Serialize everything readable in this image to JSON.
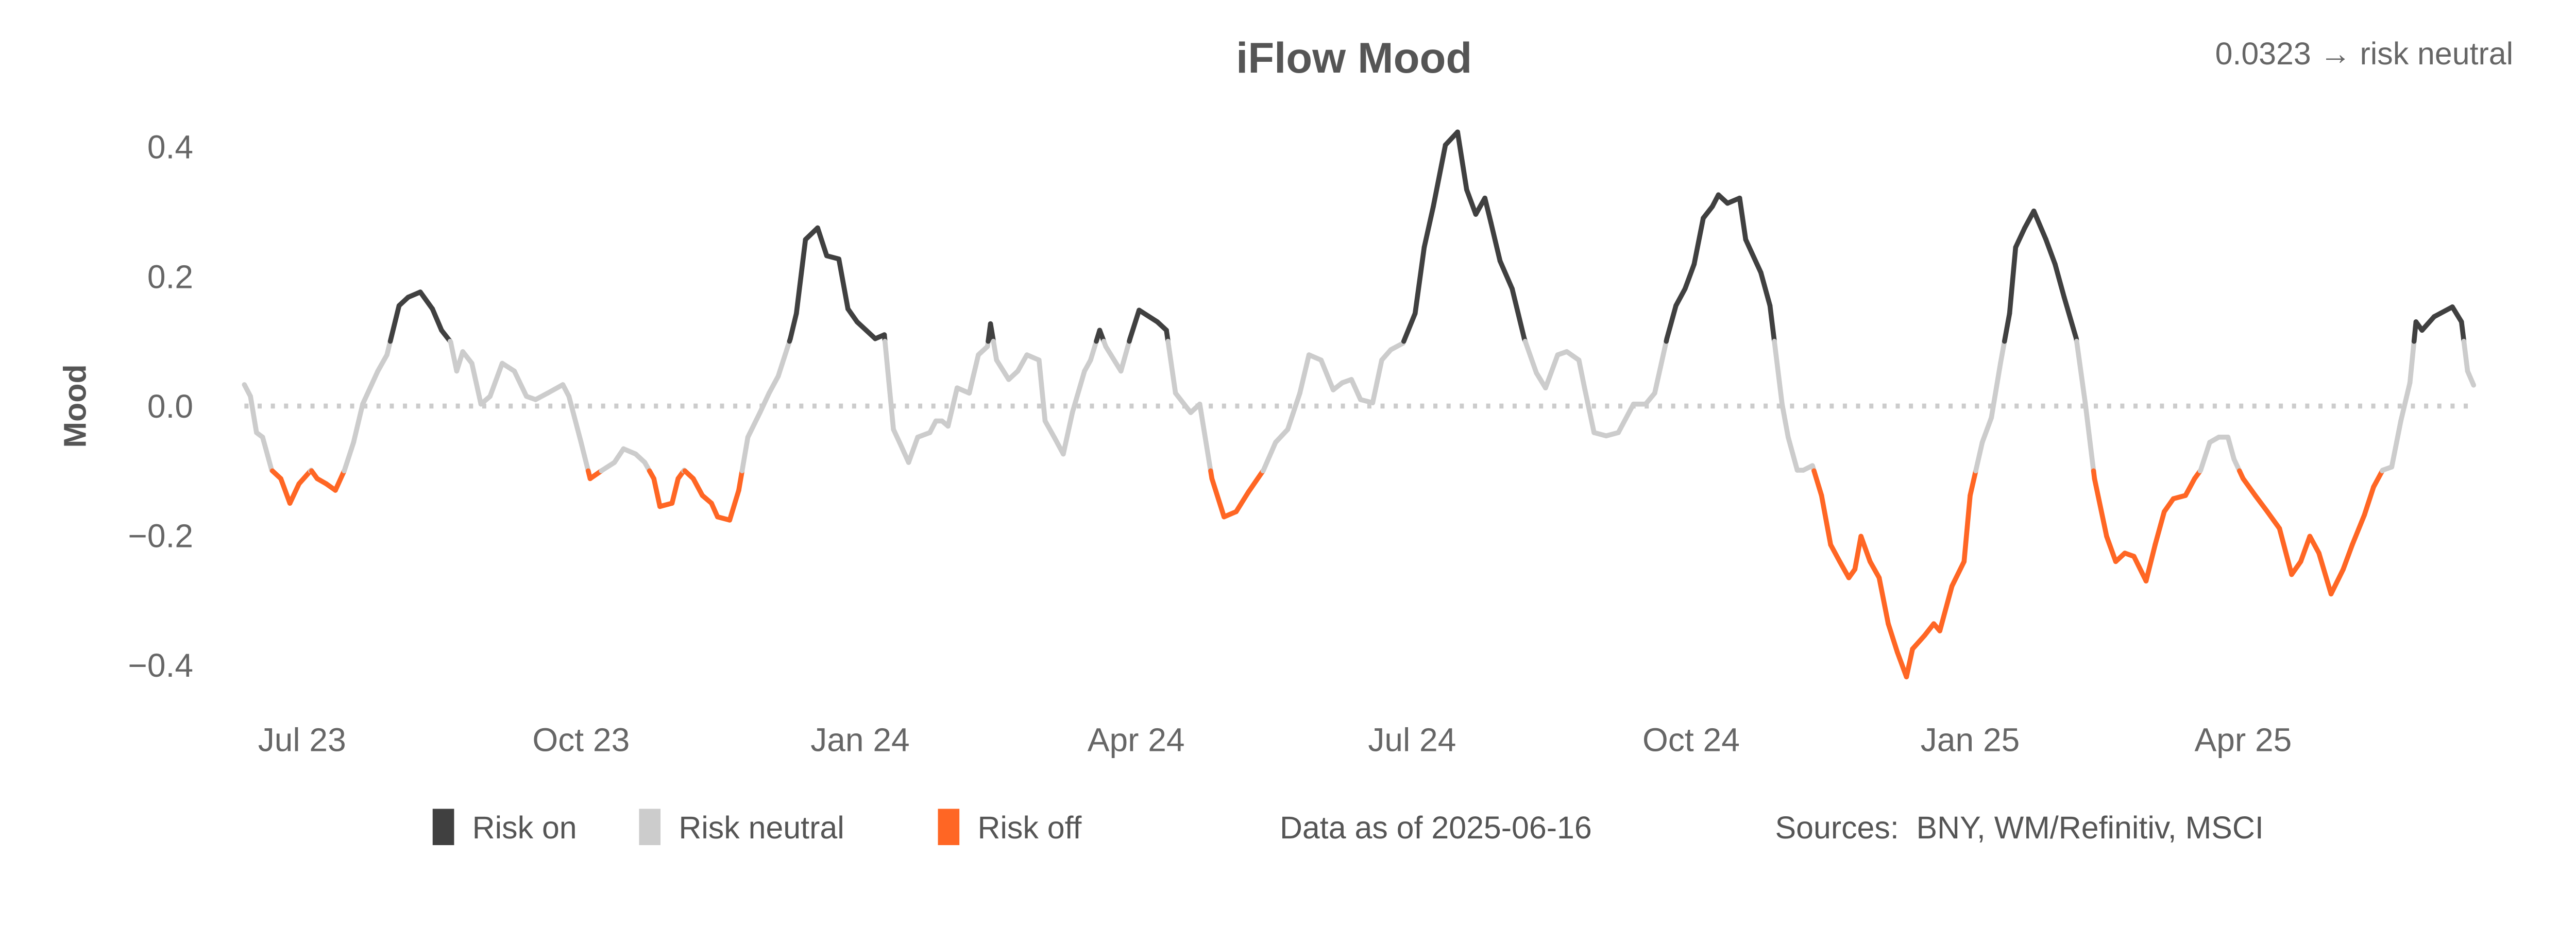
{
  "chart_data": {
    "type": "line",
    "title": "iFlow Mood",
    "status": "0.0323 → risk neutral",
    "ylabel": "Mood",
    "xlabel": "",
    "ylim": [
      -0.45,
      0.45
    ],
    "yticks": [
      0.4,
      0.2,
      0.0,
      -0.2,
      -0.4
    ],
    "ytick_labels": [
      "0.4",
      "0.2",
      "0.0",
      "−0.2",
      "−0.4"
    ],
    "xticks": [
      "2023-07-01",
      "2023-10-01",
      "2024-01-01",
      "2024-04-01",
      "2024-07-01",
      "2024-10-01",
      "2025-01-01",
      "2025-04-01"
    ],
    "xtick_labels": [
      "Jul 23",
      "Oct 23",
      "Jan 24",
      "Apr 24",
      "Jul 24",
      "Oct 24",
      "Jan 25",
      "Apr 25"
    ],
    "xlim": [
      "2023-06-12",
      "2025-06-16"
    ],
    "zero_line": "dotted",
    "grid": false,
    "legend": {
      "placement": "bottom",
      "items": [
        {
          "label": "Risk on",
          "color": "#404040"
        },
        {
          "label": "Risk neutral",
          "color": "#cccccc"
        },
        {
          "label": "Risk off",
          "color": "#ff6624"
        }
      ]
    },
    "footer": {
      "data_as_of": "Data as of 2025-06-16",
      "sources": "Sources:  BNY, WM/Refinitiv, MSCI"
    },
    "series": [
      {
        "points": [
          [
            "2023-06-12",
            0.033
          ],
          [
            "2023-06-14",
            0.015
          ],
          [
            "2023-06-16",
            -0.041
          ],
          [
            "2023-06-18",
            -0.048
          ],
          [
            "2023-06-21",
            -0.099
          ],
          [
            "2023-06-24",
            -0.112
          ],
          [
            "2023-06-27",
            -0.15
          ],
          [
            "2023-06-30",
            -0.12
          ],
          [
            "2023-07-04",
            -0.099
          ],
          [
            "2023-07-06",
            -0.112
          ],
          [
            "2023-07-09",
            -0.12
          ],
          [
            "2023-07-12",
            -0.13
          ],
          [
            "2023-07-15",
            -0.099
          ],
          [
            "2023-07-18",
            -0.056
          ],
          [
            "2023-07-21",
            0.003
          ],
          [
            "2023-07-26",
            0.054
          ],
          [
            "2023-07-29",
            0.079
          ],
          [
            "2023-08-02",
            0.155
          ],
          [
            "2023-08-05",
            0.168
          ],
          [
            "2023-08-09",
            0.176
          ],
          [
            "2023-08-13",
            0.15
          ],
          [
            "2023-08-16",
            0.117
          ],
          [
            "2023-08-19",
            0.099
          ],
          [
            "2023-08-21",
            0.054
          ],
          [
            "2023-08-23",
            0.084
          ],
          [
            "2023-08-26",
            0.066
          ],
          [
            "2023-08-29",
            0.003
          ],
          [
            "2023-09-01",
            0.015
          ],
          [
            "2023-09-05",
            0.066
          ],
          [
            "2023-09-09",
            0.054
          ],
          [
            "2023-09-13",
            0.015
          ],
          [
            "2023-09-16",
            0.01
          ],
          [
            "2023-09-20",
            0.02
          ],
          [
            "2023-09-25",
            0.033
          ],
          [
            "2023-09-27",
            0.015
          ],
          [
            "2023-10-01",
            -0.056
          ],
          [
            "2023-10-04",
            -0.112
          ],
          [
            "2023-10-08",
            -0.099
          ],
          [
            "2023-10-12",
            -0.087
          ],
          [
            "2023-10-15",
            -0.066
          ],
          [
            "2023-10-19",
            -0.074
          ],
          [
            "2023-10-22",
            -0.087
          ],
          [
            "2023-10-25",
            -0.112
          ],
          [
            "2023-10-27",
            -0.155
          ],
          [
            "2023-10-31",
            -0.15
          ],
          [
            "2023-11-02",
            -0.112
          ],
          [
            "2023-11-04",
            -0.099
          ],
          [
            "2023-11-07",
            -0.112
          ],
          [
            "2023-11-10",
            -0.138
          ],
          [
            "2023-11-13",
            -0.15
          ],
          [
            "2023-11-15",
            -0.171
          ],
          [
            "2023-11-19",
            -0.176
          ],
          [
            "2023-11-22",
            -0.13
          ],
          [
            "2023-11-25",
            -0.048
          ],
          [
            "2023-11-29",
            -0.01
          ],
          [
            "2023-12-02",
            0.02
          ],
          [
            "2023-12-05",
            0.046
          ],
          [
            "2023-12-09",
            0.104
          ],
          [
            "2023-12-11",
            0.143
          ],
          [
            "2023-12-14",
            0.257
          ],
          [
            "2023-12-18",
            0.275
          ],
          [
            "2023-12-21",
            0.232
          ],
          [
            "2023-12-25",
            0.227
          ],
          [
            "2023-12-28",
            0.15
          ],
          [
            "2023-12-31",
            0.13
          ],
          [
            "2024-01-03",
            0.117
          ],
          [
            "2024-01-06",
            0.104
          ],
          [
            "2024-01-09",
            0.11
          ],
          [
            "2024-01-12",
            -0.036
          ],
          [
            "2024-01-14",
            -0.056
          ],
          [
            "2024-01-17",
            -0.087
          ],
          [
            "2024-01-20",
            -0.048
          ],
          [
            "2024-01-24",
            -0.041
          ],
          [
            "2024-01-26",
            -0.023
          ],
          [
            "2024-01-28",
            -0.023
          ],
          [
            "2024-01-30",
            -0.031
          ],
          [
            "2024-02-02",
            0.028
          ],
          [
            "2024-02-06",
            0.02
          ],
          [
            "2024-02-09",
            0.079
          ],
          [
            "2024-02-12",
            0.092
          ],
          [
            "2024-02-13",
            0.127
          ],
          [
            "2024-02-15",
            0.071
          ],
          [
            "2024-02-19",
            0.041
          ],
          [
            "2024-02-22",
            0.054
          ],
          [
            "2024-02-25",
            0.079
          ],
          [
            "2024-02-29",
            0.071
          ],
          [
            "2024-03-02",
            -0.023
          ],
          [
            "2024-03-05",
            -0.048
          ],
          [
            "2024-03-08",
            -0.074
          ],
          [
            "2024-03-11",
            -0.01
          ],
          [
            "2024-03-15",
            0.054
          ],
          [
            "2024-03-17",
            0.071
          ],
          [
            "2024-03-20",
            0.117
          ],
          [
            "2024-03-22",
            0.092
          ],
          [
            "2024-03-27",
            0.054
          ],
          [
            "2024-03-30",
            0.104
          ],
          [
            "2024-04-02",
            0.148
          ],
          [
            "2024-04-08",
            0.13
          ],
          [
            "2024-04-11",
            0.117
          ],
          [
            "2024-04-14",
            0.02
          ],
          [
            "2024-04-19",
            -0.01
          ],
          [
            "2024-04-22",
            0.003
          ],
          [
            "2024-04-26",
            -0.112
          ],
          [
            "2024-04-30",
            -0.171
          ],
          [
            "2024-05-04",
            -0.163
          ],
          [
            "2024-05-08",
            -0.133
          ],
          [
            "2024-05-13",
            -0.099
          ],
          [
            "2024-05-17",
            -0.056
          ],
          [
            "2024-05-21",
            -0.036
          ],
          [
            "2024-05-25",
            0.02
          ],
          [
            "2024-05-28",
            0.079
          ],
          [
            "2024-06-01",
            0.071
          ],
          [
            "2024-06-05",
            0.025
          ],
          [
            "2024-06-08",
            0.036
          ],
          [
            "2024-06-11",
            0.041
          ],
          [
            "2024-06-14",
            0.01
          ],
          [
            "2024-06-18",
            0.005
          ],
          [
            "2024-06-21",
            0.071
          ],
          [
            "2024-06-24",
            0.087
          ],
          [
            "2024-06-28",
            0.097
          ],
          [
            "2024-07-02",
            0.143
          ],
          [
            "2024-07-05",
            0.245
          ],
          [
            "2024-07-08",
            0.308
          ],
          [
            "2024-07-12",
            0.403
          ],
          [
            "2024-07-16",
            0.423
          ],
          [
            "2024-07-19",
            0.334
          ],
          [
            "2024-07-22",
            0.296
          ],
          [
            "2024-07-25",
            0.321
          ],
          [
            "2024-07-27",
            0.283
          ],
          [
            "2024-07-30",
            0.224
          ],
          [
            "2024-08-03",
            0.181
          ],
          [
            "2024-08-07",
            0.104
          ],
          [
            "2024-08-11",
            0.051
          ],
          [
            "2024-08-14",
            0.028
          ],
          [
            "2024-08-18",
            0.079
          ],
          [
            "2024-08-21",
            0.084
          ],
          [
            "2024-08-25",
            0.071
          ],
          [
            "2024-08-27",
            0.025
          ],
          [
            "2024-08-30",
            -0.041
          ],
          [
            "2024-09-03",
            -0.046
          ],
          [
            "2024-09-07",
            -0.041
          ],
          [
            "2024-09-12",
            0.003
          ],
          [
            "2024-09-16",
            0.003
          ],
          [
            "2024-09-19",
            0.02
          ],
          [
            "2024-09-23",
            0.104
          ],
          [
            "2024-09-26",
            0.155
          ],
          [
            "2024-09-29",
            0.181
          ],
          [
            "2024-10-02",
            0.219
          ],
          [
            "2024-10-05",
            0.29
          ],
          [
            "2024-10-08",
            0.308
          ],
          [
            "2024-10-10",
            0.326
          ],
          [
            "2024-10-13",
            0.313
          ],
          [
            "2024-10-17",
            0.321
          ],
          [
            "2024-10-19",
            0.257
          ],
          [
            "2024-10-24",
            0.206
          ],
          [
            "2024-10-27",
            0.155
          ],
          [
            "2024-10-31",
            0.003
          ],
          [
            "2024-11-02",
            -0.048
          ],
          [
            "2024-11-05",
            -0.099
          ],
          [
            "2024-11-07",
            -0.099
          ],
          [
            "2024-11-10",
            -0.092
          ],
          [
            "2024-11-13",
            -0.138
          ],
          [
            "2024-11-16",
            -0.214
          ],
          [
            "2024-11-19",
            -0.24
          ],
          [
            "2024-11-22",
            -0.265
          ],
          [
            "2024-11-24",
            -0.252
          ],
          [
            "2024-11-26",
            -0.201
          ],
          [
            "2024-11-29",
            -0.24
          ],
          [
            "2024-12-02",
            -0.265
          ],
          [
            "2024-12-05",
            -0.336
          ],
          [
            "2024-12-08",
            -0.38
          ],
          [
            "2024-12-11",
            -0.418
          ],
          [
            "2024-12-13",
            -0.375
          ],
          [
            "2024-12-17",
            -0.354
          ],
          [
            "2024-12-20",
            -0.336
          ],
          [
            "2024-12-22",
            -0.347
          ],
          [
            "2024-12-26",
            -0.278
          ],
          [
            "2024-12-30",
            -0.24
          ],
          [
            "2025-01-01",
            -0.138
          ],
          [
            "2025-01-05",
            -0.056
          ],
          [
            "2025-01-08",
            -0.018
          ],
          [
            "2025-01-11",
            0.066
          ],
          [
            "2025-01-14",
            0.143
          ],
          [
            "2025-01-16",
            0.245
          ],
          [
            "2025-01-19",
            0.275
          ],
          [
            "2025-01-22",
            0.301
          ],
          [
            "2025-01-26",
            0.257
          ],
          [
            "2025-01-29",
            0.219
          ],
          [
            "2025-02-01",
            0.168
          ],
          [
            "2025-02-05",
            0.104
          ],
          [
            "2025-02-08",
            0.003
          ],
          [
            "2025-02-11",
            -0.112
          ],
          [
            "2025-02-15",
            -0.201
          ],
          [
            "2025-02-18",
            -0.24
          ],
          [
            "2025-02-21",
            -0.227
          ],
          [
            "2025-02-24",
            -0.232
          ],
          [
            "2025-02-28",
            -0.27
          ],
          [
            "2025-03-03",
            -0.214
          ],
          [
            "2025-03-06",
            -0.163
          ],
          [
            "2025-03-09",
            -0.143
          ],
          [
            "2025-03-13",
            -0.138
          ],
          [
            "2025-03-16",
            -0.112
          ],
          [
            "2025-03-18",
            -0.099
          ],
          [
            "2025-03-21",
            -0.056
          ],
          [
            "2025-03-24",
            -0.048
          ],
          [
            "2025-03-27",
            -0.048
          ],
          [
            "2025-03-29",
            -0.082
          ],
          [
            "2025-04-01",
            -0.112
          ],
          [
            "2025-04-05",
            -0.138
          ],
          [
            "2025-04-09",
            -0.163
          ],
          [
            "2025-04-13",
            -0.189
          ],
          [
            "2025-04-17",
            -0.26
          ],
          [
            "2025-04-20",
            -0.24
          ],
          [
            "2025-04-23",
            -0.201
          ],
          [
            "2025-04-26",
            -0.227
          ],
          [
            "2025-04-30",
            -0.29
          ],
          [
            "2025-05-04",
            -0.252
          ],
          [
            "2025-05-07",
            -0.214
          ],
          [
            "2025-05-11",
            -0.168
          ],
          [
            "2025-05-14",
            -0.125
          ],
          [
            "2025-05-17",
            -0.099
          ],
          [
            "2025-05-20",
            -0.094
          ],
          [
            "2025-05-23",
            -0.023
          ],
          [
            "2025-05-26",
            0.036
          ],
          [
            "2025-05-28",
            0.13
          ],
          [
            "2025-05-30",
            0.117
          ],
          [
            "2025-06-03",
            0.138
          ],
          [
            "2025-06-05",
            0.143
          ],
          [
            "2025-06-09",
            0.153
          ],
          [
            "2025-06-12",
            0.13
          ],
          [
            "2025-06-14",
            0.054
          ],
          [
            "2025-06-16",
            0.0323
          ]
        ]
      }
    ]
  }
}
